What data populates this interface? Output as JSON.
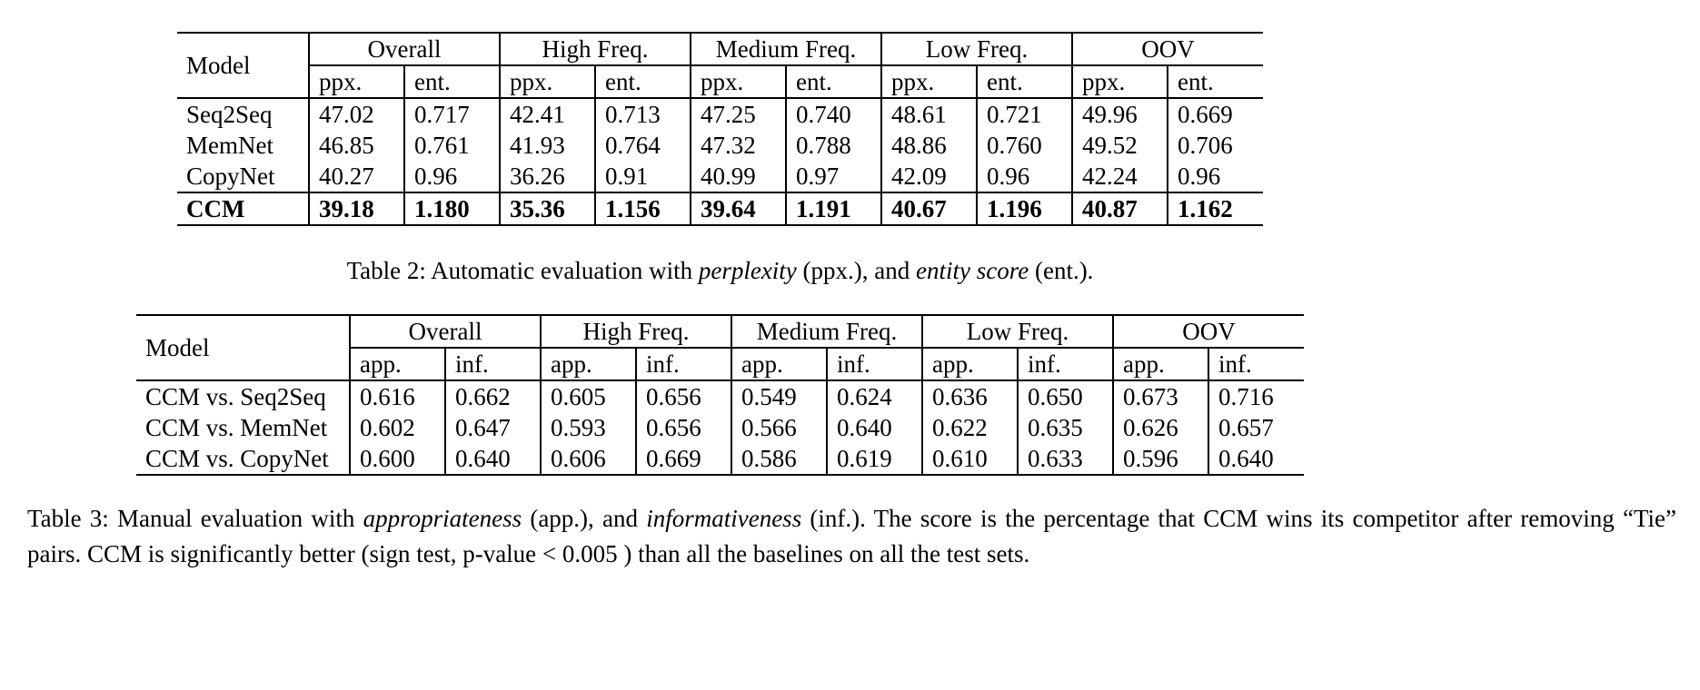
{
  "table2": {
    "model_header": "Model",
    "groups": [
      "Overall",
      "High Freq.",
      "Medium Freq.",
      "Low Freq.",
      "OOV"
    ],
    "subheaders": [
      "ppx.",
      "ent."
    ],
    "rows": [
      {
        "model": "Seq2Seq",
        "bold": false,
        "topline": false,
        "values": [
          "47.02",
          "0.717",
          "42.41",
          "0.713",
          "47.25",
          "0.740",
          "48.61",
          "0.721",
          "49.96",
          "0.669"
        ]
      },
      {
        "model": "MemNet",
        "bold": false,
        "topline": false,
        "values": [
          "46.85",
          "0.761",
          "41.93",
          "0.764",
          "47.32",
          "0.788",
          "48.86",
          "0.760",
          "49.52",
          "0.706"
        ]
      },
      {
        "model": "CopyNet",
        "bold": false,
        "topline": false,
        "values": [
          "40.27",
          "0.96",
          "36.26",
          "0.91",
          "40.99",
          "0.97",
          "42.09",
          "0.96",
          "42.24",
          "0.96"
        ]
      },
      {
        "model": "CCM",
        "bold": true,
        "topline": true,
        "values": [
          "39.18",
          "1.180",
          "35.36",
          "1.156",
          "39.64",
          "1.191",
          "40.67",
          "1.196",
          "40.87",
          "1.162"
        ]
      }
    ]
  },
  "table3": {
    "model_header": "Model",
    "groups": [
      "Overall",
      "High Freq.",
      "Medium Freq.",
      "Low Freq.",
      "OOV"
    ],
    "subheaders": [
      "app.",
      "inf."
    ],
    "rows": [
      {
        "model": "CCM vs. Seq2Seq",
        "bold": false,
        "topline": false,
        "values": [
          "0.616",
          "0.662",
          "0.605",
          "0.656",
          "0.549",
          "0.624",
          "0.636",
          "0.650",
          "0.673",
          "0.716"
        ]
      },
      {
        "model": "CCM vs. MemNet",
        "bold": false,
        "topline": false,
        "values": [
          "0.602",
          "0.647",
          "0.593",
          "0.656",
          "0.566",
          "0.640",
          "0.622",
          "0.635",
          "0.626",
          "0.657"
        ]
      },
      {
        "model": "CCM vs. CopyNet",
        "bold": false,
        "topline": false,
        "values": [
          "0.600",
          "0.640",
          "0.606",
          "0.669",
          "0.586",
          "0.619",
          "0.610",
          "0.633",
          "0.596",
          "0.640"
        ]
      }
    ]
  },
  "captions": {
    "table2": {
      "p1": "Table 2: Automatic evaluation with ",
      "i1": "perplexity",
      "p2": " (ppx.), and ",
      "i2": "entity score",
      "p3": " (ent.)."
    },
    "table3": {
      "p1": "Table 3: Manual evaluation with ",
      "i1": "appropriateness",
      "p2": " (app.), and ",
      "i2": "informativeness",
      "p3": " (inf.). The score is the percentage that CCM wins its competitor after removing “Tie” pairs. CCM is significantly better (sign test, p-value < 0.005 ) than all the baselines on all the test sets."
    }
  }
}
